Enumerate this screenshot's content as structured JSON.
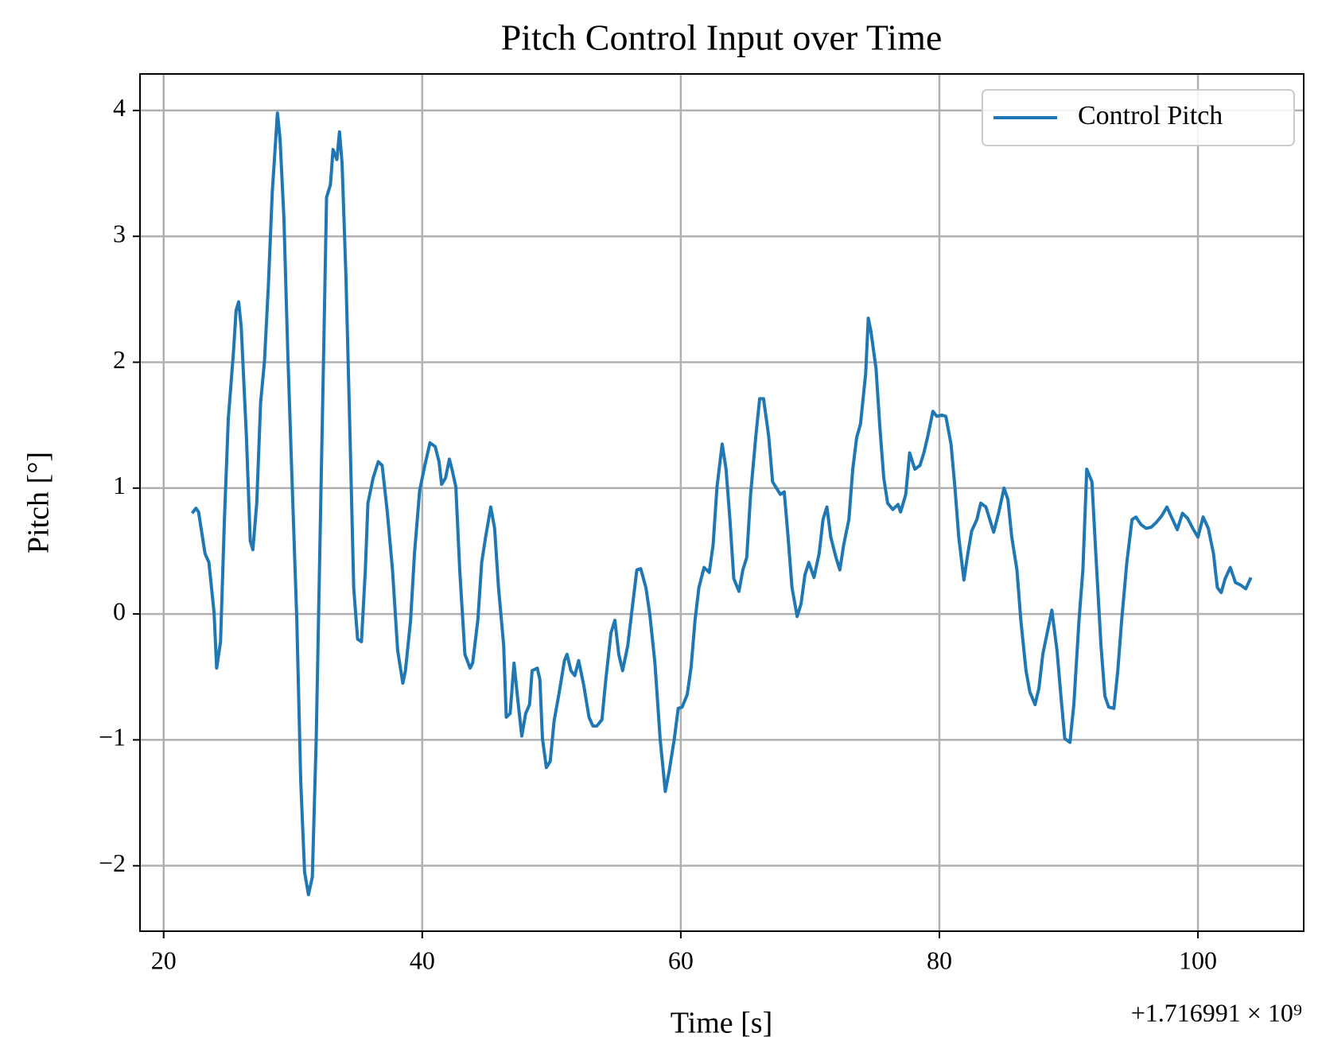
{
  "chart_data": {
    "type": "line",
    "title": "Pitch Control Input over Time",
    "x_label": "Time [s]",
    "y_label": "Pitch [°]",
    "x_offset_label": "+1.716991 × 10⁹",
    "x": [
      22.2,
      22.5,
      22.7,
      23.2,
      23.5,
      23.9,
      24.1,
      24.4,
      24.7,
      25.0,
      25.4,
      25.6,
      25.8,
      26.0,
      26.4,
      26.7,
      26.9,
      27.2,
      27.5,
      27.8,
      28.1,
      28.4,
      28.8,
      29.0,
      29.3,
      29.6,
      29.9,
      30.3,
      30.6,
      30.9,
      31.2,
      31.5,
      31.8,
      32.1,
      32.4,
      32.6,
      32.9,
      33.1,
      33.4,
      33.6,
      33.8,
      34.1,
      34.4,
      34.7,
      35.0,
      35.3,
      35.6,
      35.8,
      36.2,
      36.6,
      36.9,
      37.3,
      37.7,
      38.1,
      38.5,
      38.7,
      39.1,
      39.4,
      39.8,
      40.2,
      40.6,
      41.0,
      41.3,
      41.5,
      41.8,
      42.1,
      42.3,
      42.6,
      42.9,
      43.3,
      43.7,
      43.9,
      44.3,
      44.6,
      44.9,
      45.3,
      45.6,
      45.9,
      46.3,
      46.5,
      46.8,
      47.1,
      47.4,
      47.7,
      48.0,
      48.3,
      48.5,
      48.9,
      49.1,
      49.3,
      49.6,
      49.9,
      50.2,
      50.6,
      51.0,
      51.2,
      51.5,
      51.8,
      52.1,
      52.5,
      52.9,
      53.2,
      53.5,
      53.9,
      54.2,
      54.6,
      54.9,
      55.2,
      55.5,
      55.9,
      56.2,
      56.6,
      56.9,
      57.3,
      57.6,
      58.0,
      58.4,
      58.8,
      59.1,
      59.5,
      59.8,
      60.1,
      60.5,
      60.8,
      61.1,
      61.4,
      61.8,
      62.2,
      62.5,
      62.8,
      63.2,
      63.5,
      63.8,
      64.1,
      64.5,
      64.8,
      65.1,
      65.4,
      65.8,
      66.1,
      66.4,
      66.8,
      67.1,
      67.4,
      67.7,
      68.0,
      68.3,
      68.6,
      69.0,
      69.3,
      69.6,
      69.9,
      70.3,
      70.7,
      71.0,
      71.3,
      71.6,
      72.0,
      72.3,
      72.6,
      73.0,
      73.3,
      73.6,
      73.9,
      74.3,
      74.5,
      74.7,
      75.1,
      75.4,
      75.7,
      76.0,
      76.4,
      76.8,
      77.0,
      77.4,
      77.7,
      78.1,
      78.5,
      78.8,
      79.1,
      79.5,
      79.8,
      80.2,
      80.5,
      80.9,
      81.2,
      81.5,
      81.9,
      82.2,
      82.5,
      82.9,
      83.2,
      83.6,
      83.9,
      84.2,
      84.6,
      85.0,
      85.3,
      85.6,
      86.0,
      86.3,
      86.7,
      87.0,
      87.4,
      87.7,
      88.0,
      88.4,
      88.7,
      89.1,
      89.4,
      89.7,
      90.1,
      90.4,
      90.8,
      91.1,
      91.4,
      91.8,
      92.1,
      92.5,
      92.8,
      93.1,
      93.5,
      93.8,
      94.1,
      94.5,
      94.9,
      95.2,
      95.6,
      96.0,
      96.4,
      96.8,
      97.2,
      97.6,
      98.0,
      98.4,
      98.8,
      99.2,
      99.6,
      100.0,
      100.4,
      100.8,
      101.2,
      101.5,
      101.8,
      102.1,
      102.5,
      102.9,
      103.3,
      103.7,
      104.1
    ],
    "series": [
      {
        "name": "Control Pitch",
        "color": "#1f77b4",
        "values": [
          0.8,
          0.84,
          0.81,
          0.48,
          0.41,
          0.01,
          -0.43,
          -0.22,
          0.75,
          1.55,
          2.08,
          2.41,
          2.48,
          2.28,
          1.41,
          0.58,
          0.51,
          0.88,
          1.68,
          2.01,
          2.61,
          3.35,
          3.98,
          3.78,
          3.15,
          2.08,
          1.15,
          -0.05,
          -1.32,
          -2.05,
          -2.23,
          -2.09,
          -0.99,
          0.61,
          2.21,
          3.31,
          3.41,
          3.69,
          3.61,
          3.83,
          3.58,
          2.68,
          1.48,
          0.21,
          -0.2,
          -0.22,
          0.35,
          0.88,
          1.08,
          1.21,
          1.18,
          0.81,
          0.35,
          -0.29,
          -0.55,
          -0.45,
          -0.05,
          0.48,
          0.98,
          1.18,
          1.36,
          1.33,
          1.21,
          1.03,
          1.08,
          1.23,
          1.15,
          1.01,
          0.35,
          -0.32,
          -0.43,
          -0.39,
          -0.05,
          0.41,
          0.61,
          0.85,
          0.68,
          0.21,
          -0.25,
          -0.82,
          -0.79,
          -0.39,
          -0.69,
          -0.97,
          -0.79,
          -0.72,
          -0.45,
          -0.43,
          -0.52,
          -0.99,
          -1.22,
          -1.17,
          -0.85,
          -0.62,
          -0.37,
          -0.32,
          -0.45,
          -0.49,
          -0.37,
          -0.57,
          -0.82,
          -0.89,
          -0.89,
          -0.84,
          -0.52,
          -0.15,
          -0.05,
          -0.32,
          -0.45,
          -0.25,
          0.01,
          0.35,
          0.36,
          0.21,
          0.0,
          -0.39,
          -0.99,
          -1.41,
          -1.25,
          -0.99,
          -0.75,
          -0.74,
          -0.64,
          -0.42,
          -0.05,
          0.21,
          0.37,
          0.33,
          0.55,
          1.01,
          1.35,
          1.15,
          0.75,
          0.28,
          0.18,
          0.35,
          0.45,
          0.95,
          1.41,
          1.71,
          1.71,
          1.41,
          1.05,
          1.0,
          0.95,
          0.97,
          0.61,
          0.21,
          -0.02,
          0.08,
          0.31,
          0.41,
          0.29,
          0.48,
          0.75,
          0.85,
          0.61,
          0.45,
          0.35,
          0.55,
          0.75,
          1.15,
          1.4,
          1.51,
          1.91,
          2.35,
          2.25,
          1.95,
          1.48,
          1.08,
          0.88,
          0.83,
          0.87,
          0.81,
          0.95,
          1.28,
          1.15,
          1.18,
          1.28,
          1.41,
          1.61,
          1.57,
          1.58,
          1.57,
          1.35,
          1.01,
          0.61,
          0.27,
          0.48,
          0.66,
          0.75,
          0.88,
          0.85,
          0.75,
          0.65,
          0.81,
          1.0,
          0.91,
          0.61,
          0.35,
          -0.05,
          -0.45,
          -0.62,
          -0.72,
          -0.59,
          -0.32,
          -0.12,
          0.03,
          -0.29,
          -0.65,
          -0.99,
          -1.02,
          -0.72,
          -0.05,
          0.35,
          1.15,
          1.05,
          0.48,
          -0.25,
          -0.65,
          -0.74,
          -0.75,
          -0.45,
          -0.05,
          0.41,
          0.75,
          0.77,
          0.71,
          0.68,
          0.69,
          0.73,
          0.78,
          0.85,
          0.76,
          0.67,
          0.8,
          0.76,
          0.68,
          0.61,
          0.77,
          0.68,
          0.48,
          0.21,
          0.17,
          0.28,
          0.37,
          0.25,
          0.23,
          0.2,
          0.29
        ]
      }
    ],
    "xlim": [
      18.17,
      108.18
    ],
    "ylim": [
      -2.52,
      4.29
    ],
    "xticks": [
      20,
      40,
      60,
      80,
      100
    ],
    "yticks": [
      {
        "value": -2,
        "label": "−2"
      },
      {
        "value": -1,
        "label": "−1"
      },
      0,
      1,
      2,
      3,
      4
    ],
    "grid": true,
    "legend": "upper right"
  }
}
